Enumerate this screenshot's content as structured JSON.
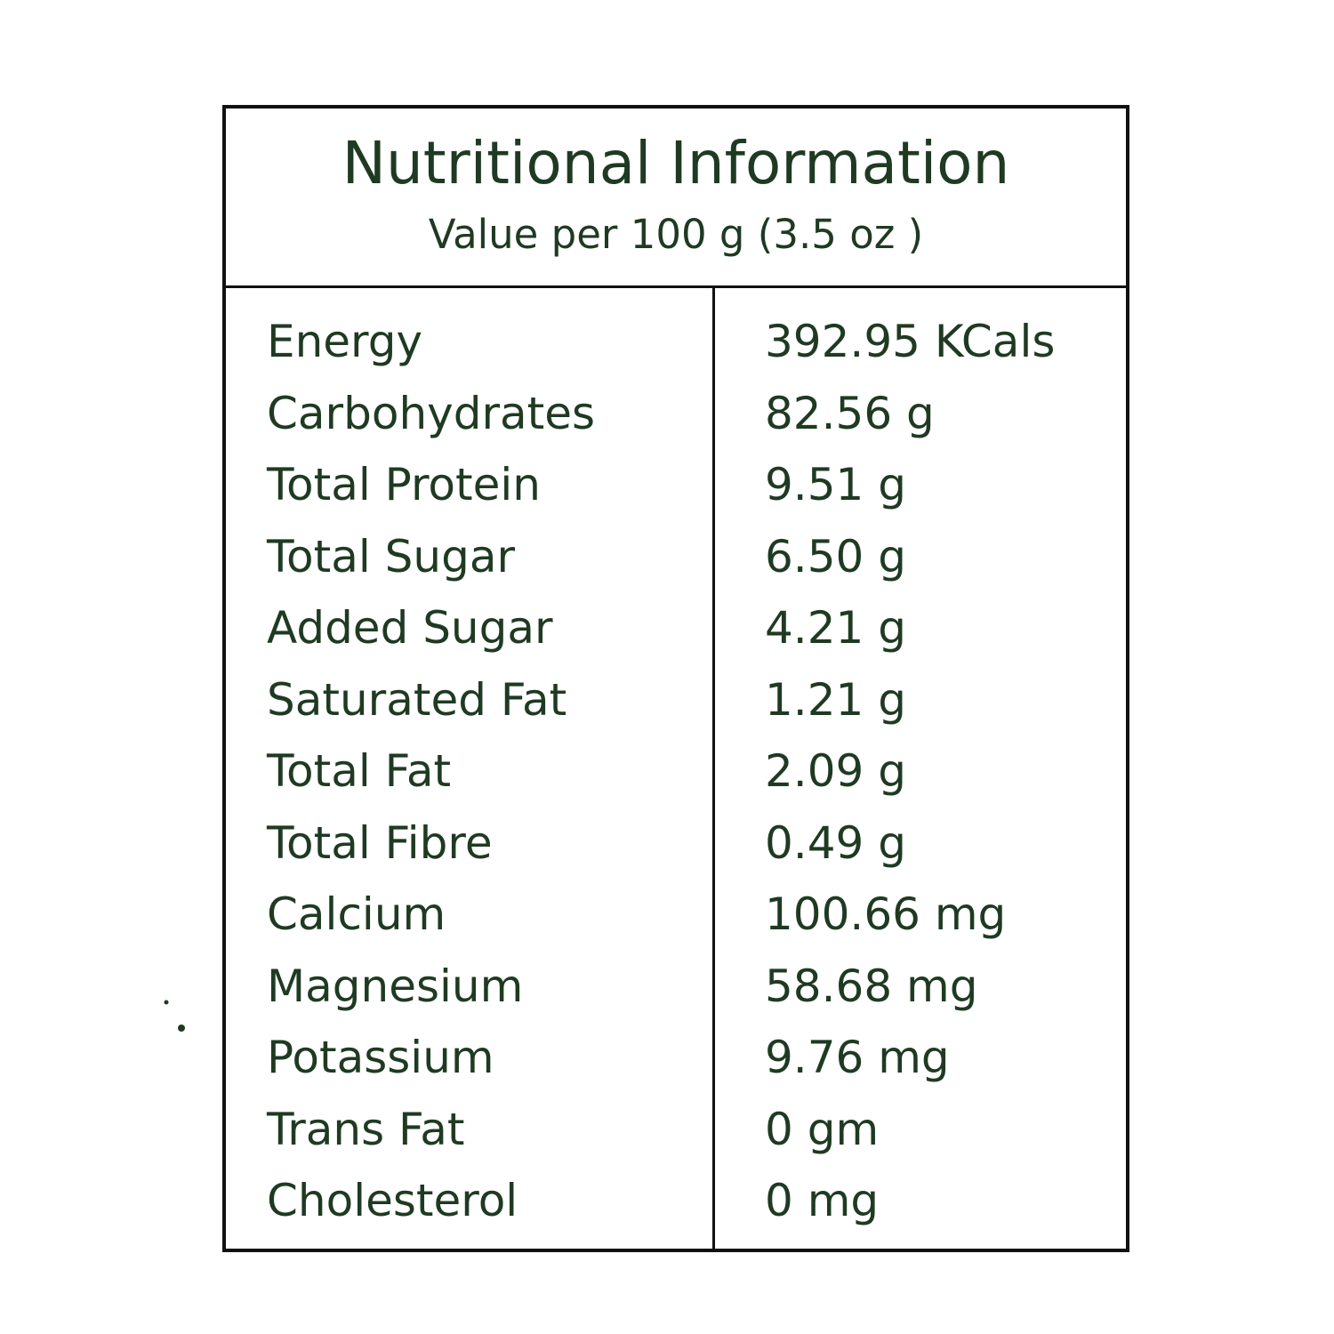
{
  "header": {
    "title": "Nutritional Information",
    "subtitle": "Value per 100 g (3.5 oz )"
  },
  "rows": [
    {
      "label": "Energy",
      "value": "392.95 KCals"
    },
    {
      "label": "Carbohydrates",
      "value": "82.56 g"
    },
    {
      "label": "Total Protein",
      "value": "9.51 g"
    },
    {
      "label": "Total Sugar",
      "value": "6.50 g"
    },
    {
      "label": "Added Sugar",
      "value": "4.21 g"
    },
    {
      "label": "Saturated Fat",
      "value": "1.21 g"
    },
    {
      "label": "Total Fat",
      "value": "2.09 g"
    },
    {
      "label": "Total Fibre",
      "value": "0.49 g"
    },
    {
      "label": "Calcium",
      "value": "100.66 mg"
    },
    {
      "label": "Magnesium",
      "value": "58.68 mg"
    },
    {
      "label": "Potassium",
      "value": "9.76 mg"
    },
    {
      "label": "Trans Fat",
      "value": "0 gm"
    },
    {
      "label": "Cholesterol",
      "value": "0 mg"
    }
  ],
  "colors": {
    "text": "#1f3a22",
    "border": "#111111",
    "background": "#ffffff"
  }
}
